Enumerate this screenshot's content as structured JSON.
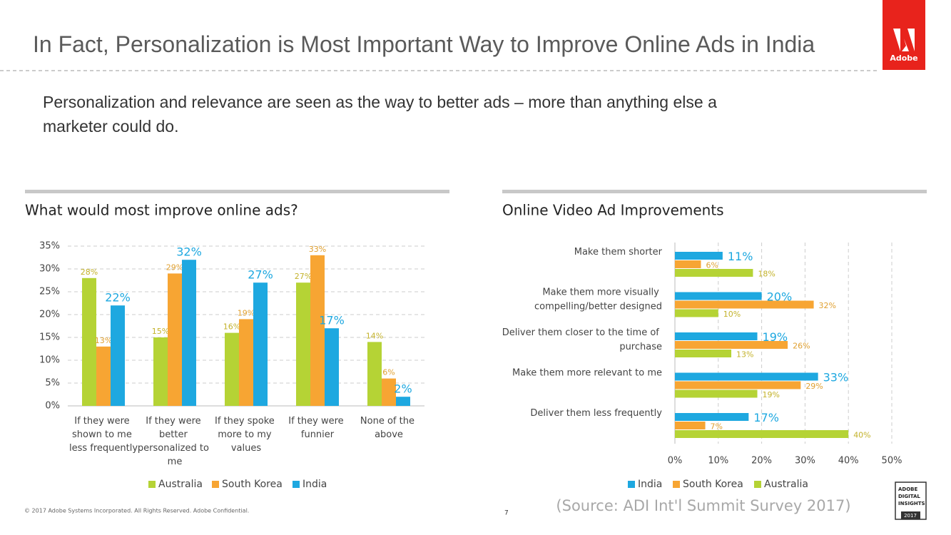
{
  "slide": {
    "title": "In Fact, Personalization is Most Important Way to Improve Online Ads in India",
    "subtitle": "Personalization and relevance are seen as the way to better ads – more than anything else a marketer could do.",
    "logo": "Adobe",
    "footer": "© 2017 Adobe Systems Incorporated.  All Rights Reserved.  Adobe Confidential.",
    "page_number": 7,
    "source": "(Source: ADI Int'l Summit Survey 2017)",
    "badge": [
      "ADOBE",
      "DIGITAL",
      "INSIGHTS",
      "2017"
    ]
  },
  "chart_data": [
    {
      "type": "bar",
      "title": "What would most improve online ads?",
      "categories": [
        "If they were shown to me less frequently",
        "If they were better personalized to me",
        "If they spoke more to my values",
        "If they were funnier",
        "None of the above"
      ],
      "series": [
        {
          "name": "Australia",
          "color": "#b5d335",
          "values": [
            28,
            15,
            16,
            27,
            14
          ],
          "value_labels": [
            "28%",
            "15%",
            "16%",
            "27%",
            "14%"
          ]
        },
        {
          "name": "South Korea",
          "color": "#f7a533",
          "values": [
            13,
            29,
            19,
            33,
            6
          ],
          "value_labels": [
            "13%",
            "29%",
            "19%",
            "33%",
            "6%"
          ]
        },
        {
          "name": "India",
          "color": "#1ea8e0",
          "values": [
            22,
            32,
            27,
            17,
            2
          ],
          "value_labels": [
            "22%",
            "32%",
            "27%",
            "17%",
            "2%"
          ]
        }
      ],
      "ylim": [
        0,
        35
      ],
      "yticks": [
        {
          "value": 0,
          "label": "0%"
        },
        {
          "value": 5,
          "label": "5%"
        },
        {
          "value": 10,
          "label": "10%"
        },
        {
          "value": 15,
          "label": "15%"
        },
        {
          "value": 20,
          "label": "20%"
        },
        {
          "value": 25,
          "label": "25%"
        },
        {
          "value": 30,
          "label": "30%"
        },
        {
          "value": 35,
          "label": "35%"
        }
      ],
      "grid": true,
      "legend": "bottom"
    },
    {
      "type": "hbar",
      "title": "Online Video Ad Improvements",
      "categories": [
        "Make them shorter",
        "Make them more visually compelling/better designed",
        "Deliver them closer to the time of purchase",
        "Make them more relevant to me",
        "Deliver them less frequently"
      ],
      "series": [
        {
          "name": "India",
          "color": "#1ea8e0",
          "values": [
            11,
            20,
            19,
            33,
            17
          ],
          "value_labels": [
            "11%",
            "20%",
            "19%",
            "33%",
            "17%"
          ]
        },
        {
          "name": "South Korea",
          "color": "#f7a533",
          "values": [
            6,
            32,
            26,
            29,
            7
          ],
          "value_labels": [
            "6%",
            "32%",
            "26%",
            "29%",
            "7%"
          ]
        },
        {
          "name": "Australia",
          "color": "#b5d335",
          "values": [
            18,
            10,
            13,
            19,
            40
          ],
          "value_labels": [
            "18%",
            "10%",
            "13%",
            "19%",
            "40%"
          ]
        }
      ],
      "xlim": [
        0,
        50
      ],
      "xticks": [
        {
          "value": 0,
          "label": "0%"
        },
        {
          "value": 10,
          "label": "10%"
        },
        {
          "value": 20,
          "label": "20%"
        },
        {
          "value": 30,
          "label": "30%"
        },
        {
          "value": 40,
          "label": "40%"
        },
        {
          "value": 50,
          "label": "50%"
        }
      ],
      "grid": true,
      "legend": "bottom"
    }
  ]
}
